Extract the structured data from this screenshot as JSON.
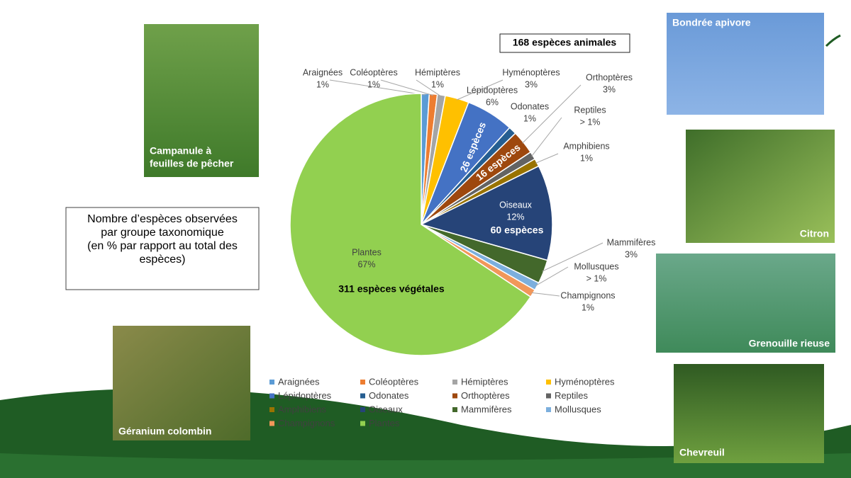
{
  "chart_data": {
    "type": "pie",
    "categories": [
      "Araignées",
      "Coléoptères",
      "Hémiptères",
      "Hyménoptères",
      "Lépidoptères",
      "Odonates",
      "Orthoptères",
      "Reptiles",
      "Amphibiens",
      "Oiseaux",
      "Mammifères",
      "Mollusques",
      "Champignons",
      "Plantes"
    ],
    "values": [
      1,
      1,
      1,
      3,
      6,
      1,
      3,
      1,
      1,
      12,
      3,
      1,
      1,
      67
    ],
    "value_labels": [
      "1%",
      "1%",
      "1%",
      "3%",
      "6%",
      "1%",
      "3%",
      "> 1%",
      "1%",
      "12%",
      "3%",
      "> 1%",
      "1%",
      "67%"
    ],
    "colors": [
      "#5b9bd5",
      "#ed7d31",
      "#a5a5a5",
      "#ffc000",
      "#4472c4",
      "#255e91",
      "#9e480e",
      "#636363",
      "#997300",
      "#264478",
      "#43682b",
      "#7cafdd",
      "#f1975a",
      "#92d050"
    ],
    "annotations": [
      "26 espèces",
      "16 espèces",
      "60 espèces"
    ],
    "callouts": [
      "168 espèces animales",
      "311 espèces végétales"
    ],
    "description": [
      "Nombre d’espèces observées",
      "par groupe taxonomique",
      "(en % par rapport au total des",
      "espèces)"
    ],
    "legend": true
  },
  "photos": [
    {
      "caption": [
        "Campanule à",
        "feuilles de pêcher"
      ]
    },
    {
      "caption": [
        "Géranium colombin"
      ]
    },
    {
      "caption": [
        "Bondrée apivore"
      ]
    },
    {
      "caption": [
        "Citron"
      ]
    },
    {
      "caption": [
        "Grenouille rieuse"
      ]
    },
    {
      "caption": [
        "Chevreuil"
      ]
    }
  ]
}
